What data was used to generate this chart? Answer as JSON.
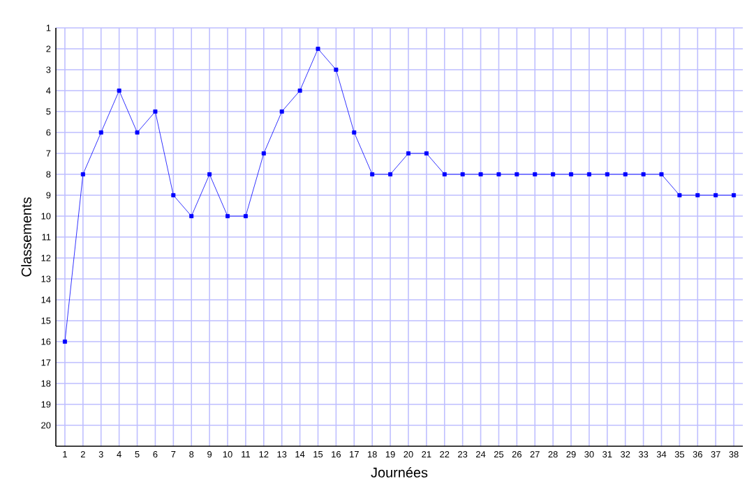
{
  "chart_data": {
    "type": "line",
    "xlabel": "Journées",
    "ylabel": "Classements",
    "x": [
      1,
      2,
      3,
      4,
      5,
      6,
      7,
      8,
      9,
      10,
      11,
      12,
      13,
      14,
      15,
      16,
      17,
      18,
      19,
      20,
      21,
      22,
      23,
      24,
      25,
      26,
      27,
      28,
      29,
      30,
      31,
      32,
      33,
      34,
      35,
      36,
      37,
      38
    ],
    "series": [
      {
        "color": "#0000ff",
        "values": [
          16,
          8,
          6,
          4,
          6,
          5,
          9,
          10,
          8,
          10,
          10,
          7,
          5,
          4,
          2,
          3,
          6,
          8,
          8,
          7,
          7,
          8,
          8,
          8,
          8,
          8,
          8,
          8,
          8,
          8,
          8,
          8,
          8,
          8,
          9,
          9,
          9,
          9
        ]
      }
    ],
    "xlim": [
      0.5,
      38.5
    ],
    "ylim": [
      21,
      1
    ],
    "xticks": [
      1,
      2,
      3,
      4,
      5,
      6,
      7,
      8,
      9,
      10,
      11,
      12,
      13,
      14,
      15,
      16,
      17,
      18,
      19,
      20,
      21,
      22,
      23,
      24,
      25,
      26,
      27,
      28,
      29,
      30,
      31,
      32,
      33,
      34,
      35,
      36,
      37,
      38
    ],
    "yticks": [
      1,
      2,
      3,
      4,
      5,
      6,
      7,
      8,
      9,
      10,
      11,
      12,
      13,
      14,
      15,
      16,
      17,
      18,
      19,
      20
    ],
    "grid": true,
    "marker": "square",
    "line_style": "solid"
  }
}
